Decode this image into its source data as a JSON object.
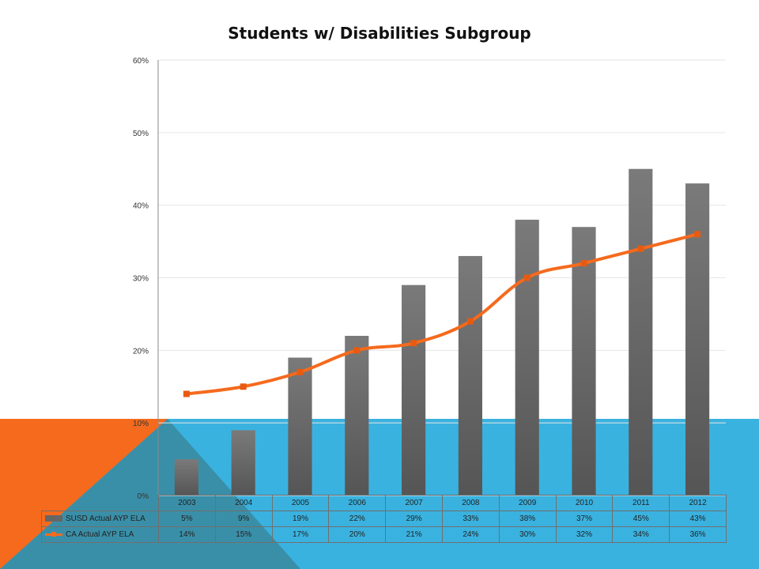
{
  "colors": {
    "bar": "#666666",
    "line": "#f56a1d",
    "bg_blue": "#3ab2e0",
    "bg_orange": "#f56a1d",
    "bg_teal": "#3a8fa8"
  },
  "chart_data": {
    "type": "bar",
    "title": "Students w/ Disabilities Subgroup",
    "categories": [
      "2003",
      "2004",
      "2005",
      "2006",
      "2007",
      "2008",
      "2009",
      "2010",
      "2011",
      "2012"
    ],
    "ylim": [
      0,
      60
    ],
    "yticks": [
      "0%",
      "10%",
      "20%",
      "30%",
      "40%",
      "50%",
      "60%"
    ],
    "grid": true,
    "legend": "data-table",
    "series": [
      {
        "name": "SUSD Actual AYP ELA",
        "type": "bar",
        "values": [
          5,
          9,
          19,
          22,
          29,
          33,
          38,
          37,
          45,
          43
        ],
        "labels": [
          "5%",
          "9%",
          "19%",
          "22%",
          "29%",
          "33%",
          "38%",
          "37%",
          "45%",
          "43%"
        ]
      },
      {
        "name": "CA Actual AYP ELA",
        "type": "line",
        "values": [
          14,
          15,
          17,
          20,
          21,
          24,
          30,
          32,
          34,
          36
        ],
        "labels": [
          "14%",
          "15%",
          "17%",
          "20%",
          "21%",
          "24%",
          "30%",
          "32%",
          "34%",
          "36%"
        ]
      }
    ]
  }
}
